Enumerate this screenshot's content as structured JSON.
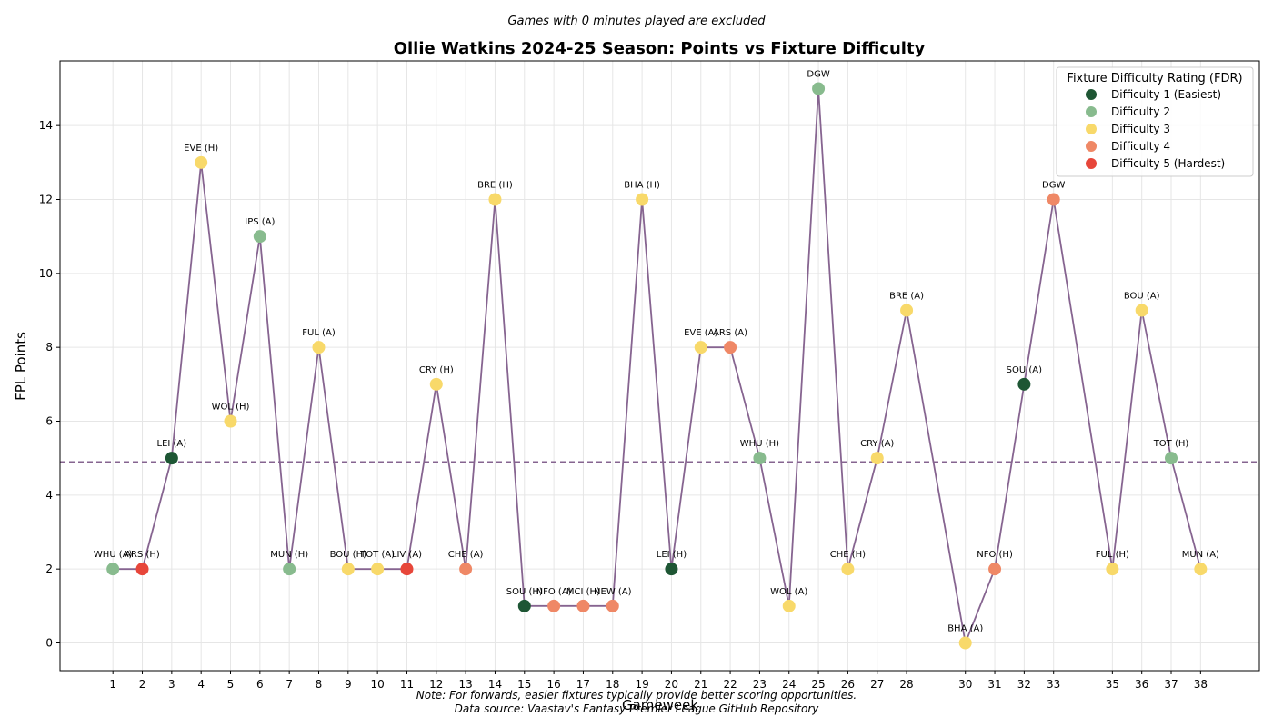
{
  "chart_data": {
    "type": "line",
    "title": "Ollie Watkins 2024-25 Season: Points vs Fixture Difficulty",
    "subtitle": "Games with 0 minutes played are excluded",
    "xlabel": "Gameweek",
    "ylabel": "FPL Points",
    "xlim": [
      -0.8,
      40
    ],
    "ylim": [
      -0.75,
      15.75
    ],
    "yticks": [
      0,
      2,
      4,
      6,
      8,
      10,
      12,
      14
    ],
    "grid": true,
    "average_line": 4.9,
    "line_color": "#866490",
    "notes": [
      "Note: For forwards, easier fixtures typically provide better scoring opportunities.",
      "Data source: Vaastav's Fantasy Premier League GitHub Repository"
    ],
    "legend": {
      "title": "Fixture Difficulty Rating (FDR)",
      "position": "top-right",
      "entries": [
        {
          "fdr": 1,
          "label": "Difficulty 1 (Easiest)",
          "color": "#1e5634"
        },
        {
          "fdr": 2,
          "label": "Difficulty 2",
          "color": "#88bb8e"
        },
        {
          "fdr": 3,
          "label": "Difficulty 3",
          "color": "#f8d96a"
        },
        {
          "fdr": 4,
          "label": "Difficulty 4",
          "color": "#ef8866"
        },
        {
          "fdr": 5,
          "label": "Difficulty 5 (Hardest)",
          "color": "#e7463a"
        }
      ]
    },
    "points": [
      {
        "gw": 1,
        "label": "WHU (A)",
        "points": 2,
        "fdr": 2
      },
      {
        "gw": 2,
        "label": "ARS (H)",
        "points": 2,
        "fdr": 5
      },
      {
        "gw": 3,
        "label": "LEI (A)",
        "points": 5,
        "fdr": 1
      },
      {
        "gw": 4,
        "label": "EVE (H)",
        "points": 13,
        "fdr": 3
      },
      {
        "gw": 5,
        "label": "WOL (H)",
        "points": 6,
        "fdr": 3
      },
      {
        "gw": 6,
        "label": "IPS (A)",
        "points": 11,
        "fdr": 2
      },
      {
        "gw": 7,
        "label": "MUN (H)",
        "points": 2,
        "fdr": 2
      },
      {
        "gw": 8,
        "label": "FUL (A)",
        "points": 8,
        "fdr": 3
      },
      {
        "gw": 9,
        "label": "BOU (H)",
        "points": 2,
        "fdr": 3
      },
      {
        "gw": 10,
        "label": "TOT (A)",
        "points": 2,
        "fdr": 3
      },
      {
        "gw": 11,
        "label": "LIV (A)",
        "points": 2,
        "fdr": 5
      },
      {
        "gw": 12,
        "label": "CRY (H)",
        "points": 7,
        "fdr": 3
      },
      {
        "gw": 13,
        "label": "CHE (A)",
        "points": 2,
        "fdr": 4
      },
      {
        "gw": 14,
        "label": "BRE (H)",
        "points": 12,
        "fdr": 3
      },
      {
        "gw": 15,
        "label": "SOU (H)",
        "points": 1,
        "fdr": 1
      },
      {
        "gw": 16,
        "label": "NFO (A)",
        "points": 1,
        "fdr": 4
      },
      {
        "gw": 17,
        "label": "MCI (H)",
        "points": 1,
        "fdr": 4
      },
      {
        "gw": 18,
        "label": "NEW (A)",
        "points": 1,
        "fdr": 4
      },
      {
        "gw": 19,
        "label": "BHA (H)",
        "points": 12,
        "fdr": 3
      },
      {
        "gw": 20,
        "label": "LEI (H)",
        "points": 2,
        "fdr": 1
      },
      {
        "gw": 21,
        "label": "EVE (A)",
        "points": 8,
        "fdr": 3
      },
      {
        "gw": 22,
        "label": "ARS (A)",
        "points": 8,
        "fdr": 4
      },
      {
        "gw": 23,
        "label": "WHU (H)",
        "points": 5,
        "fdr": 2
      },
      {
        "gw": 24,
        "label": "WOL (A)",
        "points": 1,
        "fdr": 3
      },
      {
        "gw": 25,
        "label": "DGW",
        "points": 15,
        "fdr": 2
      },
      {
        "gw": 26,
        "label": "CHE (H)",
        "points": 2,
        "fdr": 3
      },
      {
        "gw": 27,
        "label": "CRY (A)",
        "points": 5,
        "fdr": 3
      },
      {
        "gw": 28,
        "label": "BRE (A)",
        "points": 9,
        "fdr": 3
      },
      {
        "gw": 30,
        "label": "BHA (A)",
        "points": 0,
        "fdr": 3
      },
      {
        "gw": 31,
        "label": "NFO (H)",
        "points": 2,
        "fdr": 4
      },
      {
        "gw": 32,
        "label": "SOU (A)",
        "points": 7,
        "fdr": 1
      },
      {
        "gw": 33,
        "label": "DGW",
        "points": 12,
        "fdr": 4
      },
      {
        "gw": 35,
        "label": "FUL (H)",
        "points": 2,
        "fdr": 3
      },
      {
        "gw": 36,
        "label": "BOU (A)",
        "points": 9,
        "fdr": 3
      },
      {
        "gw": 37,
        "label": "TOT (H)",
        "points": 5,
        "fdr": 2
      },
      {
        "gw": 38,
        "label": "MUN (A)",
        "points": 2,
        "fdr": 3
      }
    ]
  }
}
